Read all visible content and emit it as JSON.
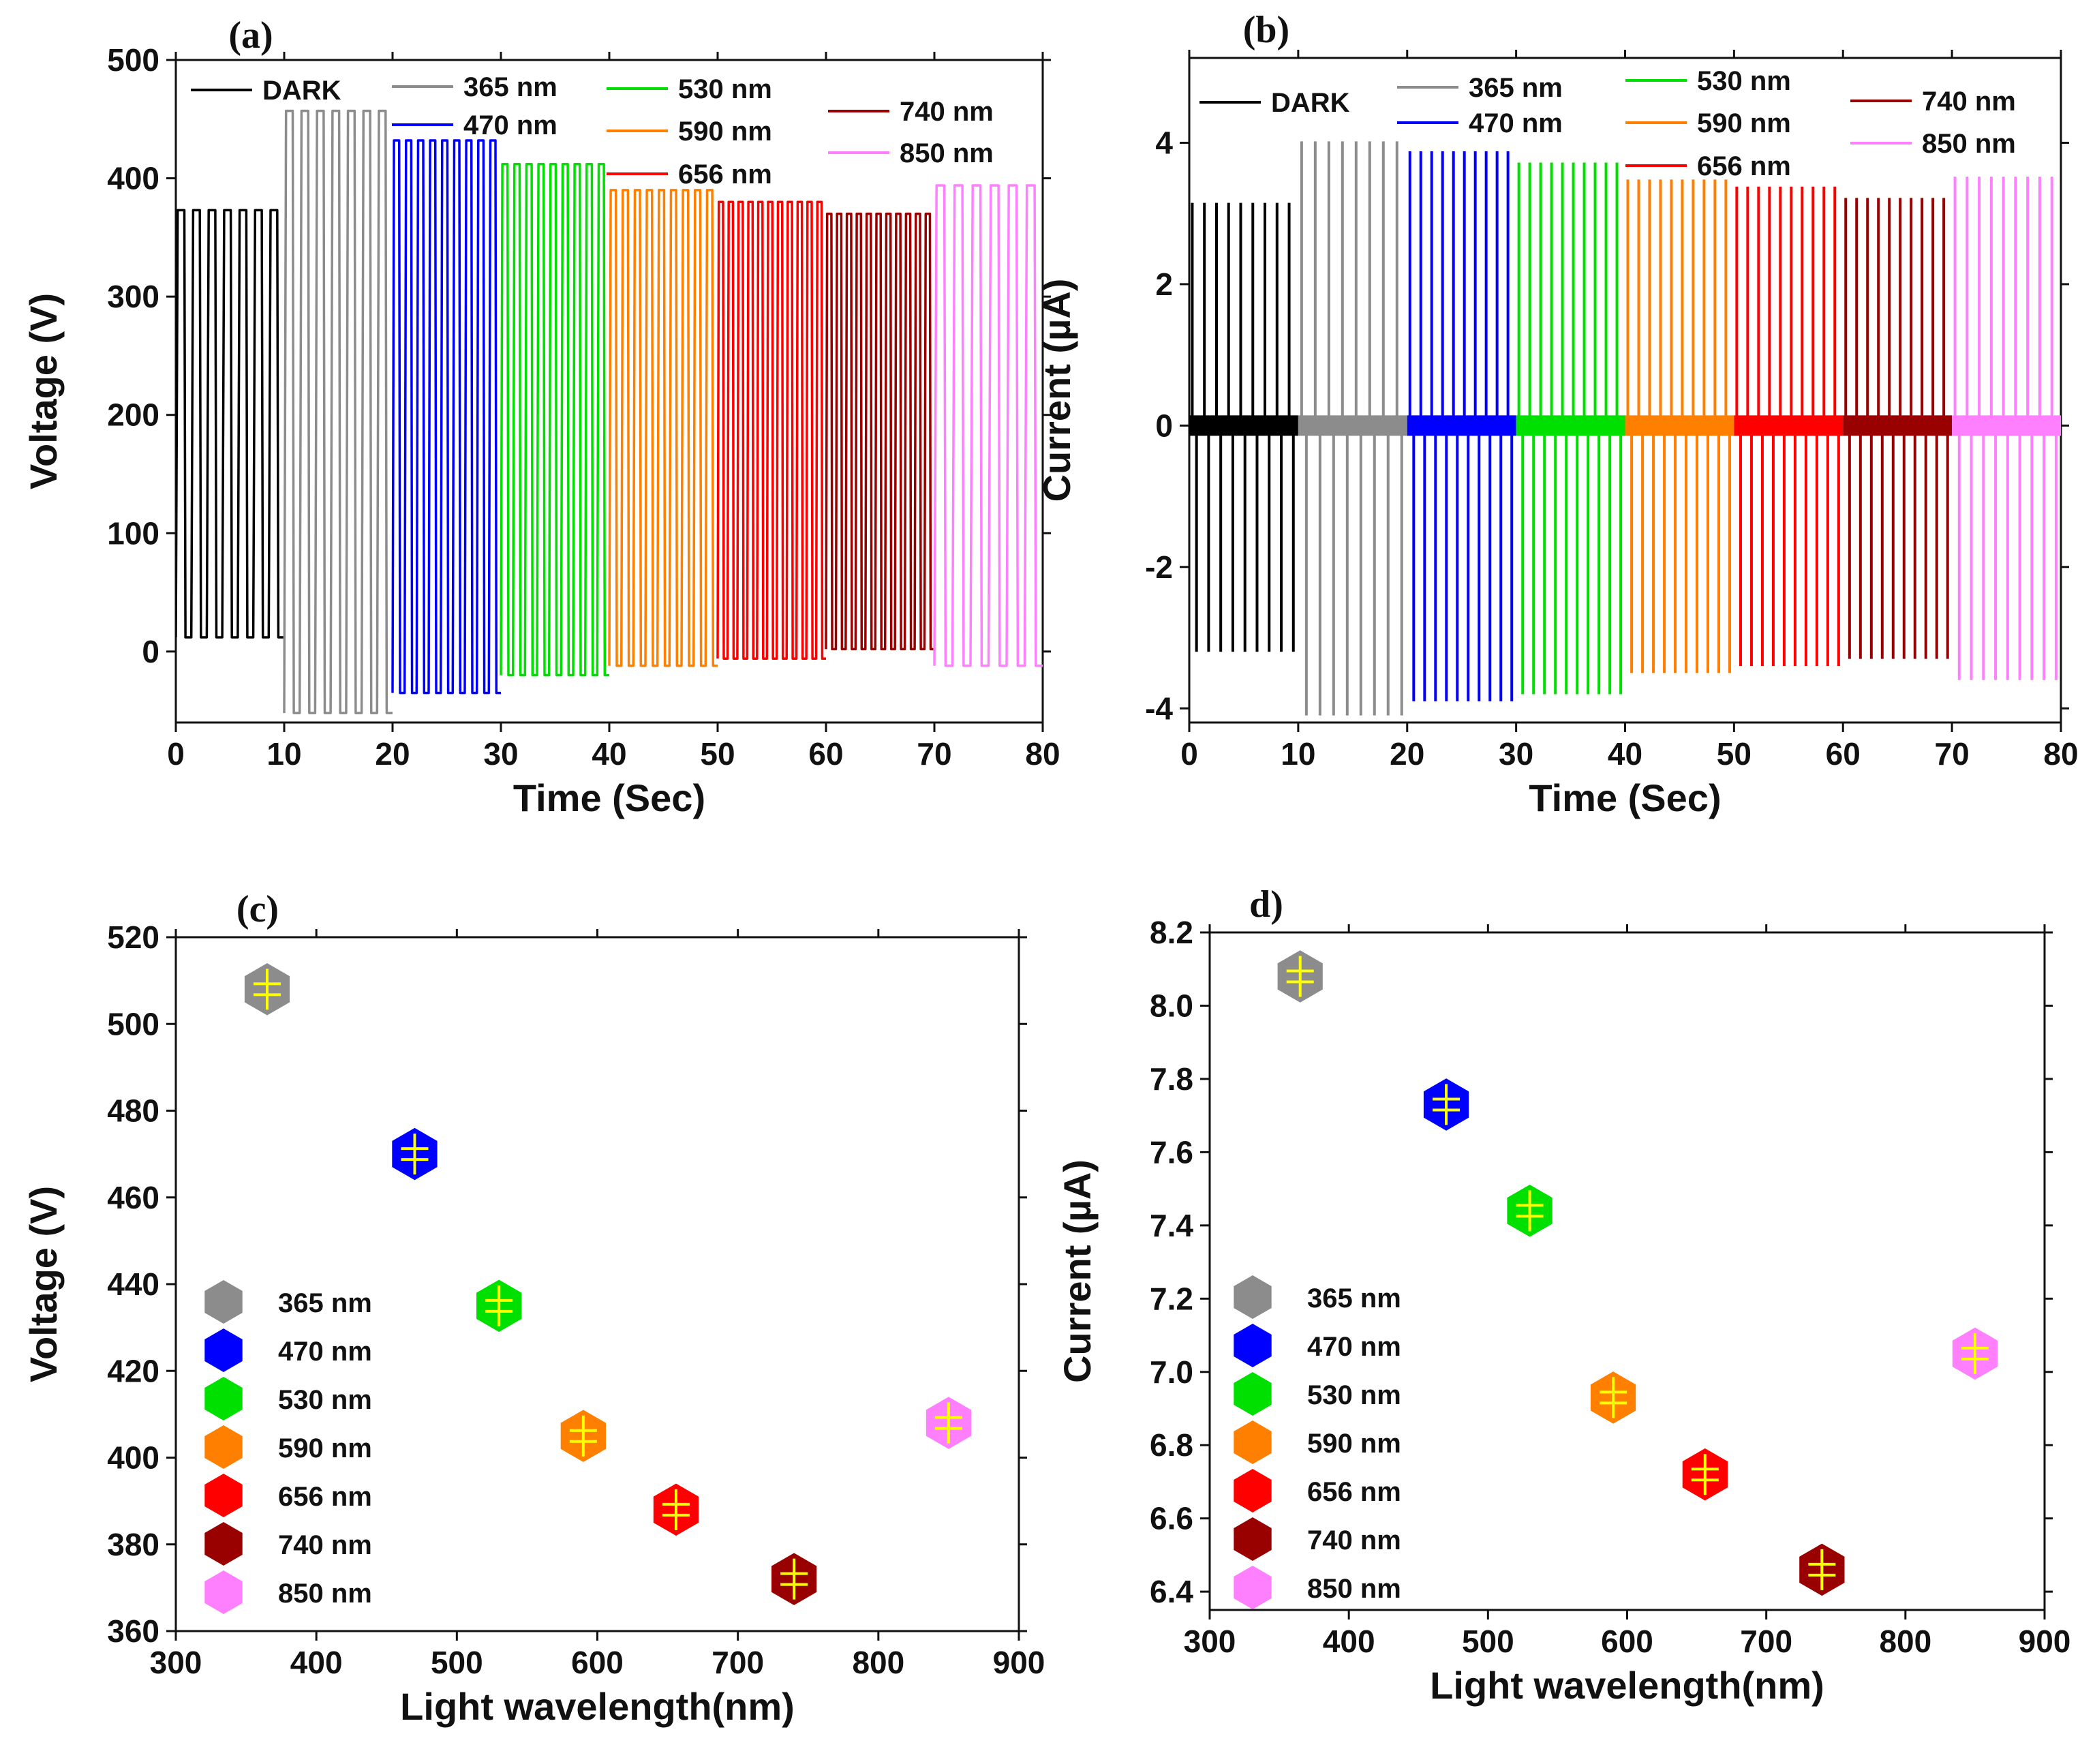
{
  "chart_data": [
    {
      "id": "a",
      "panel_label": "(a)",
      "type": "line",
      "title": "",
      "xlabel": "Time (Sec)",
      "ylabel": "Voltage (V)",
      "xlim": [
        0,
        80
      ],
      "ylim": [
        -60,
        500
      ],
      "xticks": [
        0,
        10,
        20,
        30,
        40,
        50,
        60,
        70,
        80
      ],
      "yticks": [
        0,
        100,
        200,
        300,
        400,
        500
      ],
      "grid": false,
      "series": [
        {
          "name": "DARK",
          "color": "#000000",
          "t_start": 0,
          "t_end": 10,
          "high": 373,
          "low": 12,
          "pulses": 7
        },
        {
          "name": "365 nm",
          "color": "#8c8c8c",
          "t_start": 10,
          "t_end": 20,
          "high": 457,
          "low": -52,
          "pulses": 7
        },
        {
          "name": "470 nm",
          "color": "#0000ff",
          "t_start": 20,
          "t_end": 30,
          "high": 432,
          "low": -35,
          "pulses": 9
        },
        {
          "name": "530 nm",
          "color": "#00e000",
          "t_start": 30,
          "t_end": 40,
          "high": 412,
          "low": -20,
          "pulses": 9
        },
        {
          "name": "590 nm",
          "color": "#ff8000",
          "t_start": 40,
          "t_end": 50,
          "high": 390,
          "low": -12,
          "pulses": 9
        },
        {
          "name": "656 nm",
          "color": "#ff0000",
          "t_start": 50,
          "t_end": 60,
          "high": 380,
          "low": -6,
          "pulses": 11
        },
        {
          "name": "740 nm",
          "color": "#990000",
          "t_start": 60,
          "t_end": 70,
          "high": 370,
          "low": 2,
          "pulses": 11
        },
        {
          "name": "850 nm",
          "color": "#ff80ff",
          "t_start": 70,
          "t_end": 80,
          "high": 394,
          "low": -12,
          "pulses": 6
        }
      ]
    },
    {
      "id": "b",
      "panel_label": "(b)",
      "type": "line",
      "title": "",
      "xlabel": "Time (Sec)",
      "ylabel": "Current (µA)",
      "xlim": [
        0,
        80
      ],
      "ylim": [
        -4.2,
        5.2
      ],
      "xticks": [
        0,
        10,
        20,
        30,
        40,
        50,
        60,
        70,
        80
      ],
      "yticks": [
        -4,
        -2,
        0,
        2,
        4
      ],
      "grid": false,
      "series": [
        {
          "name": "DARK",
          "color": "#000000",
          "t_start": 0,
          "t_end": 10,
          "high": 3.15,
          "low": -3.2,
          "pulses": 9
        },
        {
          "name": "365 nm",
          "color": "#8c8c8c",
          "t_start": 10,
          "t_end": 20,
          "high": 4.02,
          "low": -4.1,
          "pulses": 8
        },
        {
          "name": "470 nm",
          "color": "#0000ff",
          "t_start": 20,
          "t_end": 30,
          "high": 3.88,
          "low": -3.9,
          "pulses": 10
        },
        {
          "name": "530 nm",
          "color": "#00e000",
          "t_start": 30,
          "t_end": 40,
          "high": 3.72,
          "low": -3.8,
          "pulses": 10
        },
        {
          "name": "590 nm",
          "color": "#ff8000",
          "t_start": 40,
          "t_end": 50,
          "high": 3.48,
          "low": -3.5,
          "pulses": 10
        },
        {
          "name": "656 nm",
          "color": "#ff0000",
          "t_start": 50,
          "t_end": 60,
          "high": 3.38,
          "low": -3.4,
          "pulses": 10
        },
        {
          "name": "740 nm",
          "color": "#990000",
          "t_start": 60,
          "t_end": 70,
          "high": 3.22,
          "low": -3.3,
          "pulses": 10
        },
        {
          "name": "850 nm",
          "color": "#ff80ff",
          "t_start": 70,
          "t_end": 80,
          "high": 3.52,
          "low": -3.6,
          "pulses": 9
        }
      ]
    },
    {
      "id": "c",
      "panel_label": "(c)",
      "type": "scatter",
      "title": "",
      "xlabel": "Light wavelength(nm)",
      "ylabel": "Voltage (V)",
      "xlim": [
        300,
        900
      ],
      "ylim": [
        360,
        520
      ],
      "xticks": [
        300,
        400,
        500,
        600,
        700,
        800,
        900
      ],
      "yticks": [
        360,
        380,
        400,
        420,
        440,
        460,
        480,
        500,
        520
      ],
      "grid": false,
      "points": [
        {
          "name": "365 nm",
          "x": 365,
          "y": 508,
          "color": "#8c8c8c"
        },
        {
          "name": "470 nm",
          "x": 470,
          "y": 470,
          "color": "#0000ff"
        },
        {
          "name": "530 nm",
          "x": 530,
          "y": 435,
          "color": "#00e000"
        },
        {
          "name": "590 nm",
          "x": 590,
          "y": 405,
          "color": "#ff8000"
        },
        {
          "name": "656 nm",
          "x": 656,
          "y": 388,
          "color": "#ff0000"
        },
        {
          "name": "740 nm",
          "x": 740,
          "y": 372,
          "color": "#990000"
        },
        {
          "name": "850 nm",
          "x": 850,
          "y": 408,
          "color": "#ff80ff"
        }
      ]
    },
    {
      "id": "d",
      "panel_label": "d)",
      "type": "scatter",
      "title": "",
      "xlabel": "Light wavelength(nm)",
      "ylabel": "Current (µA)",
      "xlim": [
        300,
        900
      ],
      "ylim": [
        6.35,
        8.2
      ],
      "xticks": [
        300,
        400,
        500,
        600,
        700,
        800,
        900
      ],
      "yticks": [
        6.4,
        6.6,
        6.8,
        7.0,
        7.2,
        7.4,
        7.6,
        7.8,
        8.0,
        8.2
      ],
      "ytick_labels": [
        "6.4",
        "6.6",
        "6.8",
        "7.0",
        "7.2",
        "7.4",
        "7.6",
        "7.8",
        "8.0",
        "8.2"
      ],
      "grid": false,
      "points": [
        {
          "name": "365 nm",
          "x": 365,
          "y": 8.08,
          "color": "#8c8c8c"
        },
        {
          "name": "470 nm",
          "x": 470,
          "y": 7.73,
          "color": "#0000ff"
        },
        {
          "name": "530 nm",
          "x": 530,
          "y": 7.44,
          "color": "#00e000"
        },
        {
          "name": "590 nm",
          "x": 590,
          "y": 6.93,
          "color": "#ff8000"
        },
        {
          "name": "656 nm",
          "x": 656,
          "y": 6.72,
          "color": "#ff0000"
        },
        {
          "name": "740 nm",
          "x": 740,
          "y": 6.46,
          "color": "#990000"
        },
        {
          "name": "850 nm",
          "x": 850,
          "y": 7.05,
          "color": "#ff80ff"
        }
      ]
    }
  ]
}
